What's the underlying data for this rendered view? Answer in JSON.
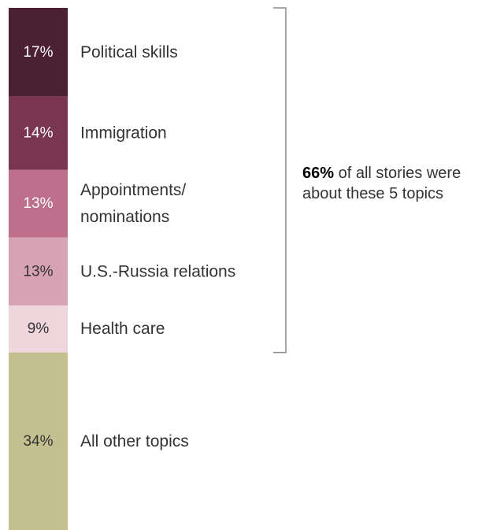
{
  "chart_data": {
    "type": "bar",
    "orientation": "stacked-vertical",
    "unit": "%",
    "categories": [
      "Political skills",
      "Immigration",
      "Appointments/ nominations",
      "U.S.-Russia relations",
      "Health care",
      "All other topics"
    ],
    "values": [
      17,
      14,
      13,
      13,
      9,
      34
    ],
    "value_labels": [
      "17%",
      "14%",
      "13%",
      "13%",
      "9%",
      "34%"
    ],
    "label_lines": [
      [
        "Political skills"
      ],
      [
        "Immigration"
      ],
      [
        "Appointments/",
        "nominations"
      ],
      [
        "U.S.-Russia relations"
      ],
      [
        "Health care"
      ],
      [
        "All other topics"
      ]
    ],
    "colors": [
      "#4a2032",
      "#7a3550",
      "#bd6f8c",
      "#d6a3b4",
      "#efd5dc",
      "#c4bf8f"
    ],
    "value_text_colors": [
      "#ffffff",
      "#ffffff",
      "#ffffff",
      "#333333",
      "#333333",
      "#333333"
    ],
    "bracket": {
      "covers_count": 5,
      "bold_part": "66%",
      "line1_rest": " of all stories were",
      "line2": "about these 5 topics"
    },
    "grid": false,
    "legend": "none"
  }
}
